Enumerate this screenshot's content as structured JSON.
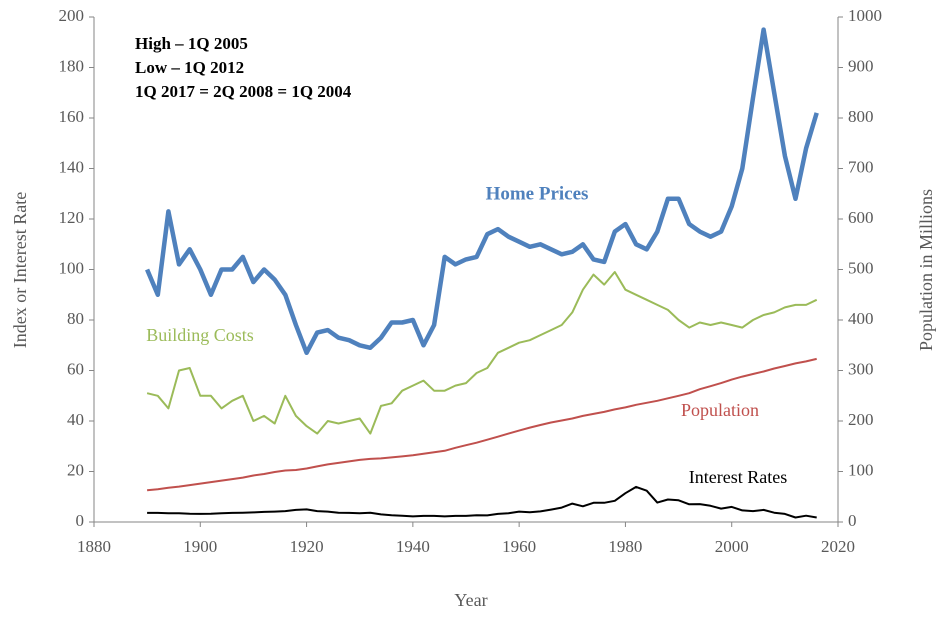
{
  "chart_data": {
    "type": "line",
    "annotations": [
      "High – 1Q 2005",
      "Low – 1Q 2012",
      "1Q 2017 = 2Q 2008 = 1Q 2004"
    ],
    "xlabel": "Year",
    "ylabel": "Index or Interest Rate",
    "y2label": "Population in Millions",
    "xlim": [
      1880,
      2020
    ],
    "xticks": [
      1880,
      1900,
      1920,
      1940,
      1960,
      1980,
      2000,
      2020
    ],
    "ylim": [
      0,
      200
    ],
    "yticks": [
      0,
      20,
      40,
      60,
      80,
      100,
      120,
      140,
      160,
      180,
      200
    ],
    "y2lim": [
      0,
      1000
    ],
    "y2ticks": [
      0,
      100,
      200,
      300,
      400,
      500,
      600,
      700,
      800,
      900,
      1000
    ],
    "x": [
      1890,
      1892,
      1894,
      1896,
      1898,
      1900,
      1902,
      1904,
      1906,
      1908,
      1910,
      1912,
      1914,
      1916,
      1918,
      1920,
      1922,
      1924,
      1926,
      1928,
      1930,
      1932,
      1934,
      1936,
      1938,
      1940,
      1942,
      1944,
      1946,
      1948,
      1950,
      1952,
      1954,
      1956,
      1958,
      1960,
      1962,
      1964,
      1966,
      1968,
      1970,
      1972,
      1974,
      1976,
      1978,
      1980,
      1982,
      1984,
      1986,
      1988,
      1990,
      1992,
      1994,
      1996,
      1998,
      2000,
      2002,
      2004,
      2006,
      2008,
      2010,
      2012,
      2014,
      2016
    ],
    "series": [
      {
        "name": "Home Prices",
        "color": "#4f81bd",
        "values": [
          100,
          90,
          123,
          102,
          108,
          100,
          90,
          100,
          100,
          105,
          95,
          100,
          96,
          90,
          78,
          67,
          75,
          76,
          73,
          72,
          70,
          69,
          73,
          79,
          79,
          80,
          70,
          78,
          105,
          102,
          104,
          105,
          114,
          116,
          113,
          111,
          109,
          110,
          108,
          106,
          107,
          110,
          104,
          103,
          115,
          118,
          110,
          108,
          115,
          128,
          128,
          118,
          115,
          113,
          115,
          125,
          140,
          168,
          195,
          170,
          145,
          128,
          148,
          162
        ]
      },
      {
        "name": "Building Costs",
        "color": "#9bbb59",
        "values": [
          51,
          50,
          45,
          60,
          61,
          50,
          50,
          45,
          48,
          50,
          40,
          42,
          39,
          50,
          42,
          38,
          35,
          40,
          39,
          40,
          41,
          35,
          46,
          47,
          52,
          54,
          56,
          52,
          52,
          54,
          55,
          59,
          61,
          67,
          69,
          71,
          72,
          74,
          76,
          78,
          83,
          92,
          98,
          94,
          99,
          92,
          90,
          88,
          86,
          84,
          80,
          77,
          79,
          78,
          79,
          78,
          77,
          80,
          82,
          83,
          85,
          86,
          86,
          88
        ]
      },
      {
        "name": "Population",
        "color": "#c0504d",
        "axis": "y2",
        "values": [
          63,
          65,
          68,
          70,
          73,
          76,
          79,
          82,
          85,
          88,
          92,
          95,
          99,
          102,
          103,
          106,
          110,
          114,
          117,
          120,
          123,
          125,
          126,
          128,
          130,
          132,
          135,
          138,
          141,
          147,
          152,
          157,
          163,
          169,
          175,
          181,
          187,
          192,
          197,
          201,
          205,
          210,
          214,
          218,
          223,
          227,
          232,
          236,
          240,
          245,
          250,
          255,
          263,
          269,
          275,
          282,
          288,
          293,
          298,
          304,
          309,
          314,
          318,
          323
        ]
      },
      {
        "name": "Interest Rates",
        "color": "#000000",
        "values": [
          3.6,
          3.6,
          3.5,
          3.5,
          3.3,
          3.2,
          3.3,
          3.5,
          3.6,
          3.7,
          3.8,
          4,
          4.1,
          4.3,
          4.8,
          5,
          4.3,
          4.1,
          3.7,
          3.6,
          3.5,
          3.7,
          3,
          2.7,
          2.5,
          2.2,
          2.4,
          2.4,
          2.2,
          2.4,
          2.4,
          2.7,
          2.6,
          3.2,
          3.5,
          4.1,
          3.9,
          4.2,
          4.9,
          5.7,
          7.3,
          6.2,
          7.6,
          7.6,
          8.4,
          11.4,
          13.9,
          12.4,
          7.7,
          8.9,
          8.6,
          7,
          7.1,
          6.4,
          5.3,
          6,
          4.6,
          4.3,
          4.8,
          3.7,
          3.2,
          1.8,
          2.5,
          1.8
        ]
      }
    ]
  }
}
